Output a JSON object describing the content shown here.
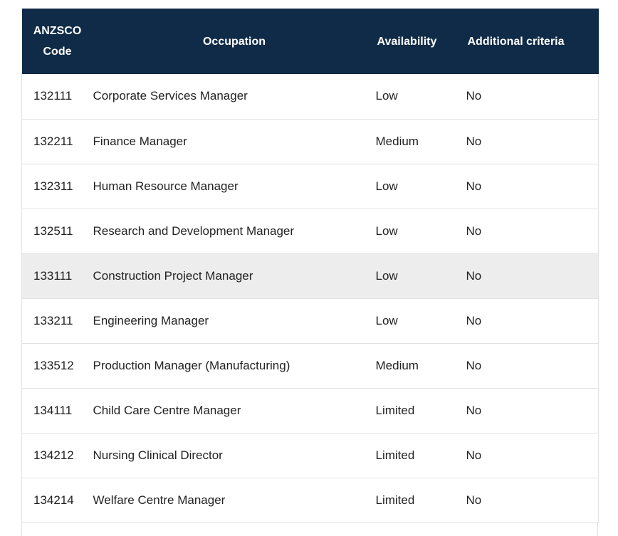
{
  "table": {
    "headers": {
      "code_line1": "ANZSCO",
      "code_line2": "Code",
      "occupation": "Occupation",
      "availability": "Availability",
      "additional_criteria": "Additional criteria"
    },
    "rows": [
      {
        "code": "132111",
        "occupation": "Corporate Services Manager",
        "availability": "Low",
        "criteria": "No"
      },
      {
        "code": "132211",
        "occupation": "Finance Manager",
        "availability": "Medium",
        "criteria": "No"
      },
      {
        "code": "132311",
        "occupation": "Human Resource Manager",
        "availability": "Low",
        "criteria": "No"
      },
      {
        "code": "132511",
        "occupation": "Research and Development Manager",
        "availability": "Low",
        "criteria": "No"
      },
      {
        "code": "133111",
        "occupation": "Construction Project Manager",
        "availability": "Low",
        "criteria": "No"
      },
      {
        "code": "133211",
        "occupation": "Engineering Manager",
        "availability": "Low",
        "criteria": "No"
      },
      {
        "code": "133512",
        "occupation": "Production Manager (Manufacturing)",
        "availability": "Medium",
        "criteria": "No"
      },
      {
        "code": "134111",
        "occupation": "Child Care Centre Manager",
        "availability": "Limited",
        "criteria": "No"
      },
      {
        "code": "134212",
        "occupation": "Nursing Clinical Director",
        "availability": "Limited",
        "criteria": "No"
      },
      {
        "code": "134214",
        "occupation": "Welfare Centre Manager",
        "availability": "Limited",
        "criteria": "No"
      }
    ]
  },
  "colors": {
    "header_bg": "#0f2b47",
    "header_text": "#ffffff",
    "row_highlight": "#ededed",
    "row_border": "#e2e2e2"
  }
}
